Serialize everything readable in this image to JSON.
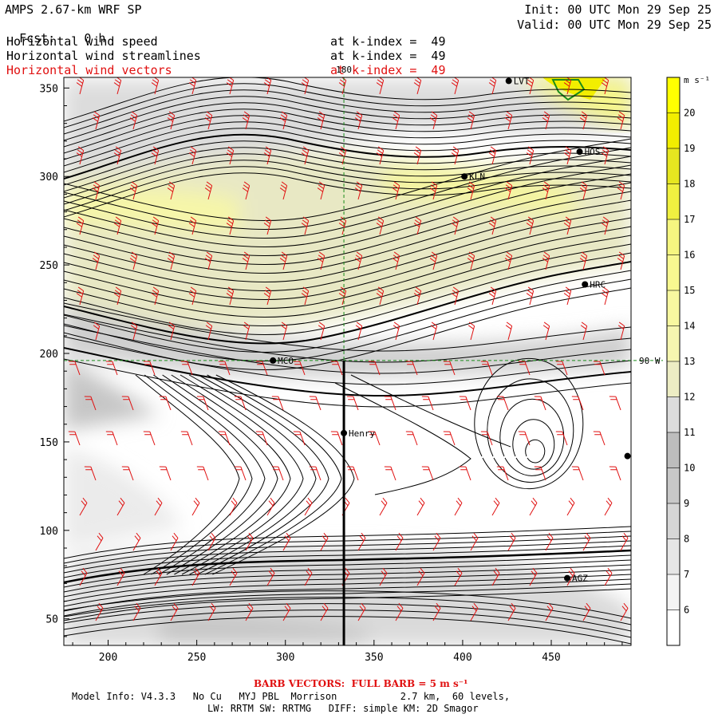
{
  "header": {
    "model_title": "AMPS 2.67-km WRF SP",
    "init": "Init: 00 UTC Mon 29 Sep 25",
    "fcst_label": "Fcst:",
    "fcst_value": "0 h",
    "valid": "Valid: 00 UTC Mon 29 Sep 25",
    "fields": [
      {
        "name": "Horizontal wind speed",
        "level": "at k-index =  49"
      },
      {
        "name": "Horizontal wind streamlines",
        "level": "at k-index =  49"
      },
      {
        "name": "Horizontal wind vectors",
        "level": "at k-index =  49"
      }
    ]
  },
  "chart_data": {
    "type": "heatmap",
    "title": "AMPS 2.67-km WRF SP",
    "xlim": [
      175,
      495
    ],
    "ylim": [
      35,
      356
    ],
    "x_ticks": [
      200,
      250,
      300,
      350,
      400,
      450
    ],
    "y_ticks": [
      50,
      100,
      150,
      200,
      250,
      300,
      350
    ],
    "colorbar": {
      "unit": "m s⁻¹",
      "levels": [
        6,
        7,
        8,
        9,
        10,
        11,
        12,
        13,
        14,
        15,
        16,
        17,
        18,
        19,
        20
      ],
      "colors": [
        "#ffffff",
        "#f4f4f4",
        "#e6e6e6",
        "#d6d6d6",
        "#c8c8c8",
        "#bdbdbd",
        "#dcdcdc",
        "#ededc4",
        "#f6f6b0",
        "#f8f8a0",
        "#f8f890",
        "#f6f680",
        "#f0f040",
        "#e6e620",
        "#f2ee00",
        "#ffff00"
      ]
    },
    "reference_lines": [
      {
        "label": "180",
        "axis": "x",
        "value": 333
      },
      {
        "label": "90 W",
        "axis": "y",
        "value": 196
      }
    ],
    "stations": [
      {
        "label": "LVT",
        "x": 426,
        "y": 354
      },
      {
        "label": "HOS",
        "x": 466,
        "y": 314
      },
      {
        "label": "KLN",
        "x": 401,
        "y": 300
      },
      {
        "label": "HRC",
        "x": 469,
        "y": 239
      },
      {
        "label": "MCO",
        "x": 293,
        "y": 196
      },
      {
        "label": "Henry",
        "x": 333,
        "y": 155
      },
      {
        "label": "",
        "x": 493,
        "y": 142
      },
      {
        "label": "AGZ",
        "x": 459,
        "y": 73
      }
    ],
    "transect": {
      "x": 333,
      "y_from": 35,
      "y_to": 196
    }
  },
  "footer": {
    "barb_note": "BARB VECTORS:  FULL BARB = 5 m s⁻¹",
    "model_info": "Model Info: V4.3.3   No Cu   MYJ PBL  Morrison           2.7 km,  60 levels,",
    "physics": "LW: RRTM SW: RRTMG   DIFF: simple KM: 2D Smagor"
  }
}
